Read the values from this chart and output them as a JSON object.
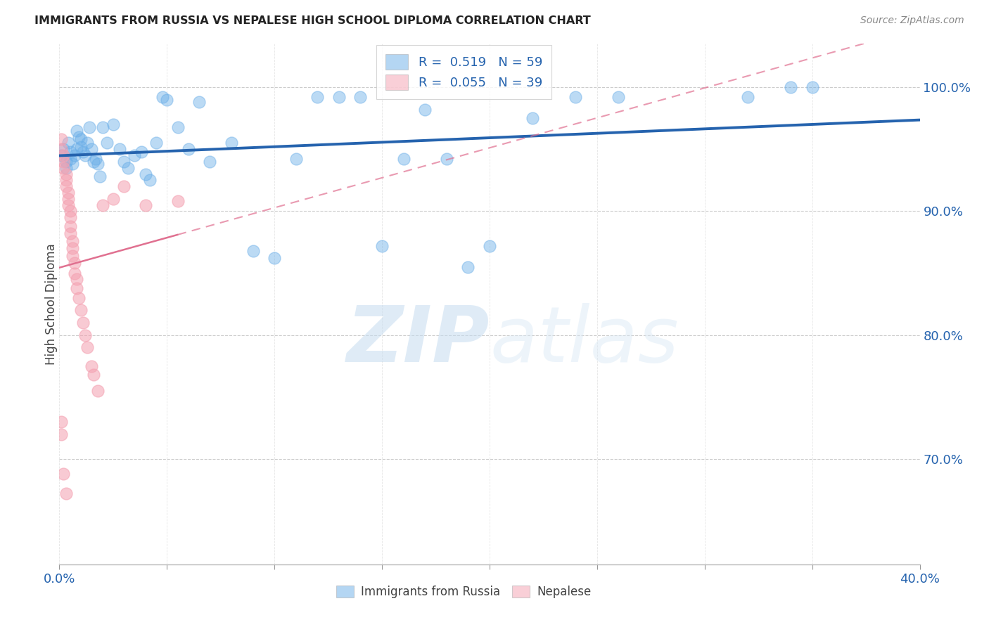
{
  "title": "IMMIGRANTS FROM RUSSIA VS NEPALESE HIGH SCHOOL DIPLOMA CORRELATION CHART",
  "source": "Source: ZipAtlas.com",
  "ylabel": "High School Diploma",
  "legend_label1": "Immigrants from Russia",
  "legend_label2": "Nepalese",
  "R1": 0.519,
  "N1": 59,
  "R2": 0.055,
  "N2": 39,
  "color_blue": "#6aaee8",
  "color_pink": "#f4a0b0",
  "color_blue_line": "#2563ae",
  "color_pink_line": "#e07090",
  "watermark_zip": "ZIP",
  "watermark_atlas": "atlas",
  "ytick_vals": [
    1.0,
    0.9,
    0.8,
    0.7
  ],
  "xlim": [
    0.0,
    0.4
  ],
  "ylim": [
    0.615,
    1.035
  ],
  "background_color": "#FFFFFF",
  "blue_x": [
    0.001,
    0.002,
    0.003,
    0.003,
    0.004,
    0.005,
    0.005,
    0.006,
    0.007,
    0.008,
    0.008,
    0.009,
    0.01,
    0.01,
    0.011,
    0.012,
    0.013,
    0.014,
    0.015,
    0.016,
    0.017,
    0.018,
    0.019,
    0.02,
    0.022,
    0.025,
    0.028,
    0.03,
    0.032,
    0.035,
    0.038,
    0.04,
    0.042,
    0.045,
    0.048,
    0.05,
    0.055,
    0.06,
    0.065,
    0.07,
    0.08,
    0.09,
    0.1,
    0.11,
    0.12,
    0.13,
    0.14,
    0.15,
    0.16,
    0.17,
    0.18,
    0.19,
    0.2,
    0.22,
    0.24,
    0.26,
    0.32,
    0.34,
    0.35
  ],
  "blue_y": [
    0.945,
    0.95,
    0.94,
    0.935,
    0.955,
    0.948,
    0.942,
    0.938,
    0.945,
    0.95,
    0.965,
    0.96,
    0.952,
    0.958,
    0.948,
    0.945,
    0.955,
    0.968,
    0.95,
    0.94,
    0.942,
    0.938,
    0.928,
    0.968,
    0.955,
    0.97,
    0.95,
    0.94,
    0.935,
    0.945,
    0.948,
    0.93,
    0.925,
    0.955,
    0.992,
    0.99,
    0.968,
    0.95,
    0.988,
    0.94,
    0.955,
    0.868,
    0.862,
    0.942,
    0.992,
    0.992,
    0.992,
    0.872,
    0.942,
    0.982,
    0.942,
    0.855,
    0.872,
    0.975,
    0.992,
    0.992,
    0.992,
    1.0,
    1.0
  ],
  "pink_x": [
    0.001,
    0.001,
    0.002,
    0.002,
    0.002,
    0.003,
    0.003,
    0.003,
    0.004,
    0.004,
    0.004,
    0.005,
    0.005,
    0.005,
    0.005,
    0.006,
    0.006,
    0.006,
    0.007,
    0.007,
    0.008,
    0.008,
    0.009,
    0.01,
    0.011,
    0.012,
    0.013,
    0.015,
    0.016,
    0.018,
    0.02,
    0.025,
    0.03,
    0.04,
    0.055,
    0.002,
    0.003,
    0.001,
    0.001
  ],
  "pink_y": [
    0.958,
    0.95,
    0.945,
    0.94,
    0.935,
    0.93,
    0.925,
    0.92,
    0.915,
    0.91,
    0.905,
    0.9,
    0.895,
    0.888,
    0.882,
    0.876,
    0.87,
    0.864,
    0.858,
    0.85,
    0.845,
    0.838,
    0.83,
    0.82,
    0.81,
    0.8,
    0.79,
    0.775,
    0.768,
    0.755,
    0.905,
    0.91,
    0.92,
    0.905,
    0.908,
    0.688,
    0.672,
    0.73,
    0.72
  ]
}
